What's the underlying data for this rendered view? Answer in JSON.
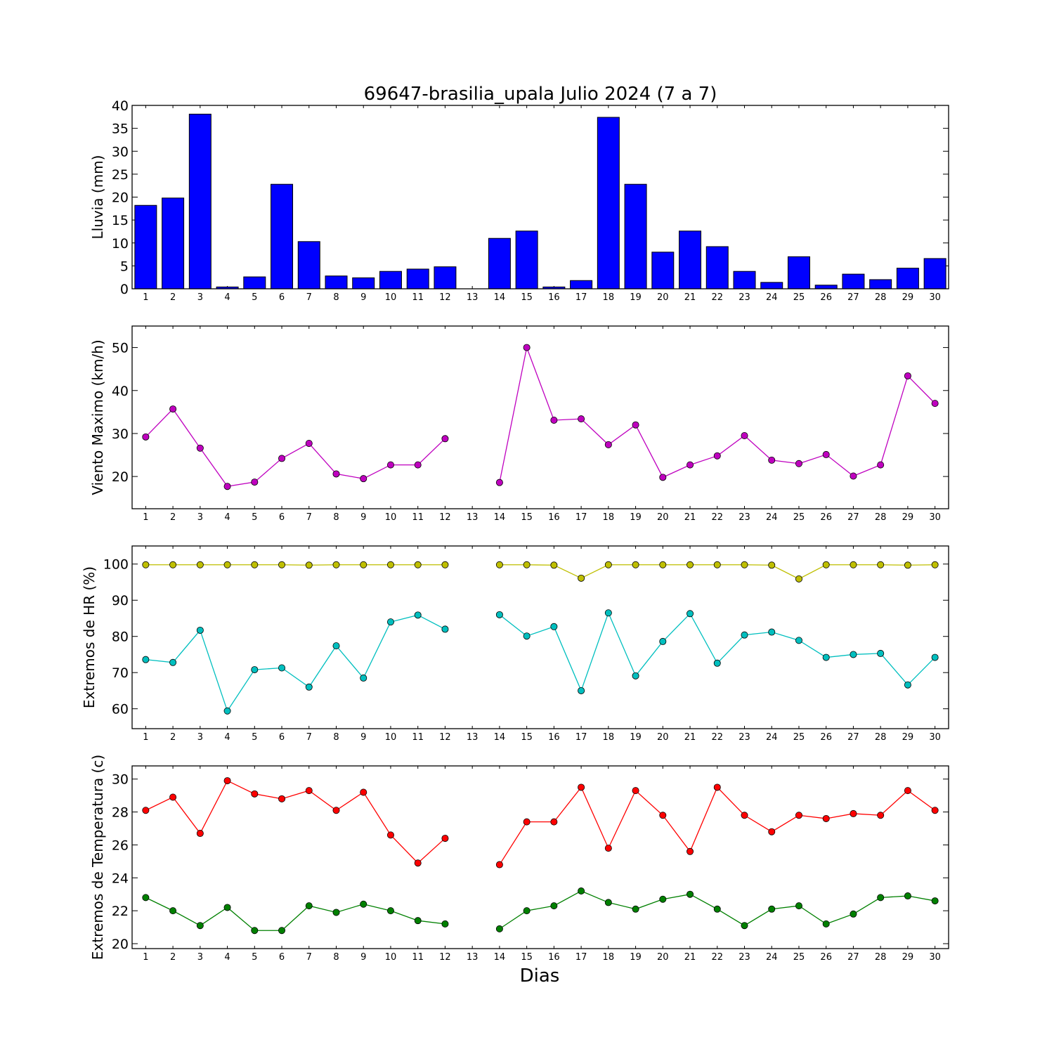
{
  "chart_data": [
    {
      "type": "bar",
      "title": "69647-brasilia_upala Julio 2024  (7 a 7)",
      "ylabel": "Lluvia (mm)",
      "xlabel": "",
      "categories": [
        "1",
        "2",
        "3",
        "4",
        "5",
        "6",
        "7",
        "8",
        "9",
        "10",
        "11",
        "12",
        "13",
        "14",
        "15",
        "16",
        "17",
        "18",
        "19",
        "20",
        "21",
        "22",
        "23",
        "24",
        "25",
        "26",
        "27",
        "28",
        "29",
        "30"
      ],
      "values": [
        18.2,
        19.8,
        38.1,
        0.4,
        2.6,
        22.8,
        10.3,
        2.8,
        2.4,
        3.8,
        4.3,
        4.8,
        0,
        11.0,
        12.6,
        0.4,
        1.8,
        37.4,
        22.8,
        8.0,
        12.6,
        9.2,
        3.8,
        1.4,
        7.0,
        0.8,
        3.2,
        2.0,
        4.5,
        6.6
      ],
      "ylim": [
        0,
        40
      ],
      "yticks": [
        0,
        5,
        10,
        15,
        20,
        25,
        30,
        35,
        40
      ],
      "colors": [
        "#0000ff"
      ]
    },
    {
      "type": "line",
      "title": "",
      "ylabel": "Viento Maximo (km/h)",
      "xlabel": "",
      "categories": [
        "1",
        "2",
        "3",
        "4",
        "5",
        "6",
        "7",
        "8",
        "9",
        "10",
        "11",
        "12",
        "13",
        "14",
        "15",
        "16",
        "17",
        "18",
        "19",
        "20",
        "21",
        "22",
        "23",
        "24",
        "25",
        "26",
        "27",
        "28",
        "29",
        "30"
      ],
      "series": [
        {
          "values": [
            29.2,
            35.7,
            26.6,
            17.7,
            18.7,
            24.2,
            27.7,
            20.6,
            19.5,
            22.7,
            22.7,
            28.8,
            null,
            18.6,
            50.0,
            33.1,
            33.4,
            27.4,
            32.0,
            19.8,
            22.7,
            24.8,
            29.5,
            23.8,
            23.0,
            25.1,
            20.1,
            22.7,
            43.4,
            37.0
          ],
          "color": "#bf00bf"
        }
      ],
      "ylim": [
        12.5,
        55
      ],
      "yticks": [
        20,
        30,
        40,
        50
      ]
    },
    {
      "type": "line",
      "title": "",
      "ylabel": "Extremos de HR (%)",
      "xlabel": "",
      "categories": [
        "1",
        "2",
        "3",
        "4",
        "5",
        "6",
        "7",
        "8",
        "9",
        "10",
        "11",
        "12",
        "13",
        "14",
        "15",
        "16",
        "17",
        "18",
        "19",
        "20",
        "21",
        "22",
        "23",
        "24",
        "25",
        "26",
        "27",
        "28",
        "29",
        "30"
      ],
      "series": [
        {
          "values": [
            99.8,
            99.8,
            99.8,
            99.8,
            99.8,
            99.8,
            99.7,
            99.8,
            99.8,
            99.8,
            99.8,
            99.8,
            null,
            99.8,
            99.8,
            99.7,
            96.1,
            99.8,
            99.8,
            99.8,
            99.8,
            99.8,
            99.8,
            99.7,
            95.9,
            99.8,
            99.8,
            99.8,
            99.7,
            99.8
          ],
          "color": "#bfbf00"
        },
        {
          "values": [
            73.6,
            72.8,
            81.7,
            59.4,
            70.8,
            71.3,
            66.0,
            77.4,
            68.5,
            84.0,
            85.9,
            82.0,
            null,
            86.0,
            80.1,
            82.7,
            65.0,
            86.5,
            69.1,
            78.6,
            86.3,
            72.6,
            80.4,
            81.2,
            78.9,
            74.2,
            75.0,
            75.3,
            66.6,
            74.2
          ],
          "color": "#00bfbf"
        }
      ],
      "ylim": [
        54.5,
        105
      ],
      "yticks": [
        60,
        70,
        80,
        90,
        100
      ]
    },
    {
      "type": "line",
      "title": "",
      "ylabel": "Extremos de Temperatura (c)",
      "xlabel": "Dias",
      "categories": [
        "1",
        "2",
        "3",
        "4",
        "5",
        "6",
        "7",
        "8",
        "9",
        "10",
        "11",
        "12",
        "13",
        "14",
        "15",
        "16",
        "17",
        "18",
        "19",
        "20",
        "21",
        "22",
        "23",
        "24",
        "25",
        "26",
        "27",
        "28",
        "29",
        "30"
      ],
      "series": [
        {
          "values": [
            28.1,
            28.9,
            26.7,
            29.9,
            29.1,
            28.8,
            29.3,
            28.1,
            29.2,
            26.6,
            24.9,
            26.4,
            null,
            24.8,
            27.4,
            27.4,
            29.5,
            25.8,
            29.3,
            27.8,
            25.6,
            29.5,
            27.8,
            26.8,
            27.8,
            27.6,
            27.9,
            27.8,
            29.3,
            28.1
          ],
          "color": "#ff0000"
        },
        {
          "values": [
            22.8,
            22.0,
            21.1,
            22.2,
            20.8,
            20.8,
            22.3,
            21.9,
            22.4,
            22.0,
            21.4,
            21.2,
            null,
            20.9,
            22.0,
            22.3,
            23.2,
            22.5,
            22.1,
            22.7,
            23.0,
            22.1,
            21.1,
            22.1,
            22.3,
            21.2,
            21.8,
            22.8,
            22.9,
            22.6
          ],
          "color": "#008000"
        }
      ],
      "ylim": [
        19.7,
        30.8
      ],
      "yticks": [
        20,
        22,
        24,
        26,
        28,
        30
      ]
    }
  ]
}
